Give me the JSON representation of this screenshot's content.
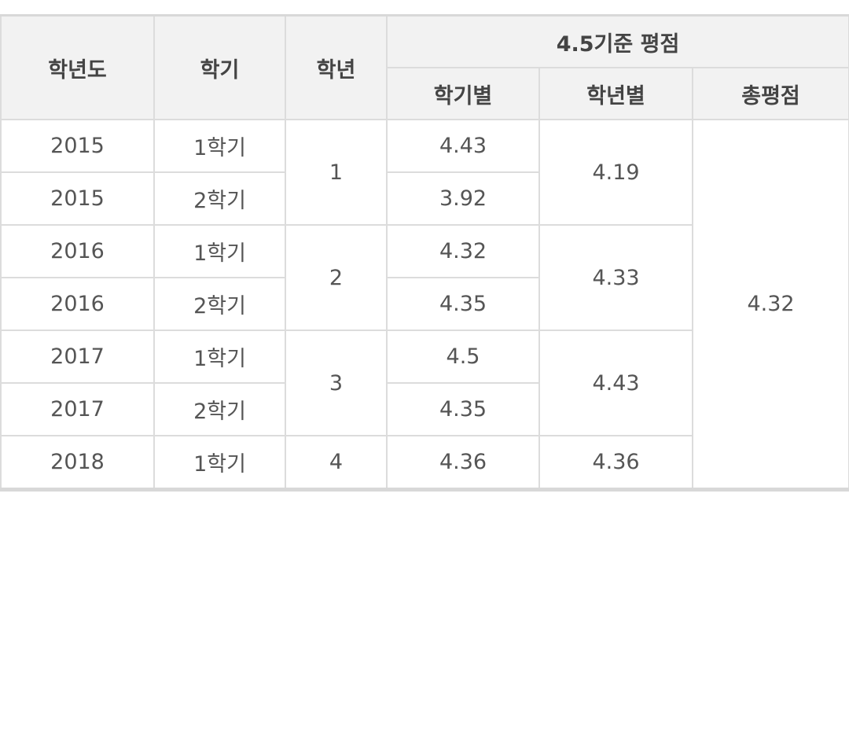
{
  "table": {
    "headers": {
      "year": "학년도",
      "semester": "학기",
      "grade": "학년",
      "gpa_group": "4.5기준 평점",
      "by_semester": "학기별",
      "by_grade": "학년별",
      "total": "총평점"
    },
    "rows": [
      {
        "year": "2015",
        "semester": "1학기",
        "semester_gpa": "4.43"
      },
      {
        "year": "2015",
        "semester": "2학기",
        "semester_gpa": "3.92"
      },
      {
        "year": "2016",
        "semester": "1학기",
        "semester_gpa": "4.32"
      },
      {
        "year": "2016",
        "semester": "2학기",
        "semester_gpa": "4.35"
      },
      {
        "year": "2017",
        "semester": "1학기",
        "semester_gpa": "4.5"
      },
      {
        "year": "2017",
        "semester": "2학기",
        "semester_gpa": "4.35"
      },
      {
        "year": "2018",
        "semester": "1학기",
        "semester_gpa": "4.36"
      }
    ],
    "grades": [
      {
        "grade": "1",
        "grade_gpa": "4.19"
      },
      {
        "grade": "2",
        "grade_gpa": "4.33"
      },
      {
        "grade": "3",
        "grade_gpa": "4.43"
      },
      {
        "grade": "4",
        "grade_gpa": "4.36"
      }
    ],
    "total_gpa": "4.32"
  }
}
